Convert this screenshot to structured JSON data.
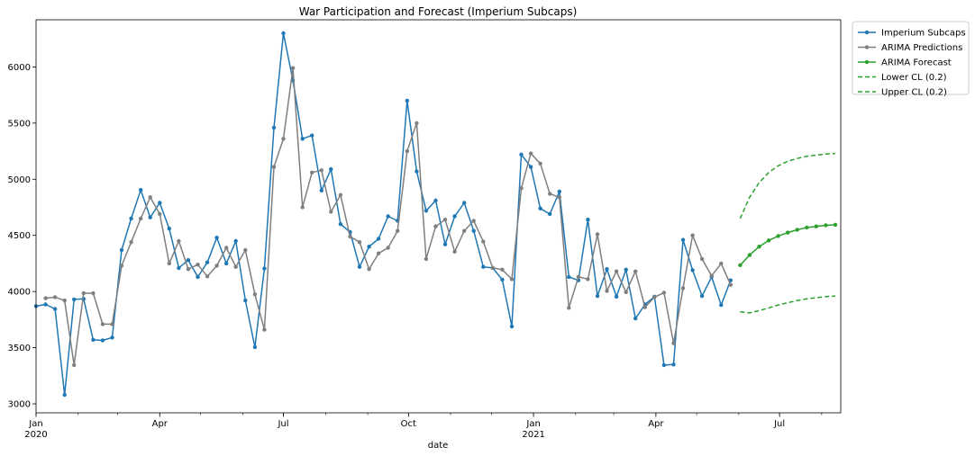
{
  "chart_data": {
    "type": "line",
    "title": "War Participation and Forecast (Imperium Subcaps)",
    "xlabel": "date",
    "ylabel": "",
    "x_axis": {
      "type": "date",
      "range": [
        "2020-01-01",
        "2021-08-15"
      ],
      "major_ticks": [
        {
          "date": "2020-01-01",
          "label": "Jan",
          "sublabel": "2020"
        },
        {
          "date": "2020-04-01",
          "label": "Apr",
          "sublabel": ""
        },
        {
          "date": "2020-07-01",
          "label": "Jul",
          "sublabel": ""
        },
        {
          "date": "2020-10-01",
          "label": "Oct",
          "sublabel": ""
        },
        {
          "date": "2021-01-01",
          "label": "Jan",
          "sublabel": "2021"
        },
        {
          "date": "2021-04-01",
          "label": "Apr",
          "sublabel": ""
        },
        {
          "date": "2021-07-01",
          "label": "Jul",
          "sublabel": ""
        }
      ]
    },
    "y_axis": {
      "range": [
        2920,
        6420
      ],
      "ticks": [
        3000,
        3500,
        4000,
        4500,
        5000,
        5500,
        6000
      ]
    },
    "grid": false,
    "legend": {
      "placement": "outside top-right"
    },
    "series": [
      {
        "name": "Imperium Subcaps",
        "color": "#1f77b4",
        "style": "solid",
        "marker": "dot",
        "points": [
          {
            "x": "2020-01-01",
            "y": 3870
          },
          {
            "x": "2020-01-08",
            "y": 3885
          },
          {
            "x": "2020-01-15",
            "y": 3845
          },
          {
            "x": "2020-01-22",
            "y": 3080
          },
          {
            "x": "2020-01-29",
            "y": 3930
          },
          {
            "x": "2020-02-05",
            "y": 3935
          },
          {
            "x": "2020-02-12",
            "y": 3570
          },
          {
            "x": "2020-02-19",
            "y": 3565
          },
          {
            "x": "2020-02-26",
            "y": 3590
          },
          {
            "x": "2020-03-04",
            "y": 4370
          },
          {
            "x": "2020-03-11",
            "y": 4650
          },
          {
            "x": "2020-03-18",
            "y": 4905
          },
          {
            "x": "2020-03-25",
            "y": 4660
          },
          {
            "x": "2020-04-01",
            "y": 4790
          },
          {
            "x": "2020-04-08",
            "y": 4560
          },
          {
            "x": "2020-04-15",
            "y": 4210
          },
          {
            "x": "2020-04-22",
            "y": 4280
          },
          {
            "x": "2020-04-29",
            "y": 4130
          },
          {
            "x": "2020-05-06",
            "y": 4260
          },
          {
            "x": "2020-05-13",
            "y": 4480
          },
          {
            "x": "2020-05-20",
            "y": 4250
          },
          {
            "x": "2020-05-27",
            "y": 4450
          },
          {
            "x": "2020-06-03",
            "y": 3920
          },
          {
            "x": "2020-06-10",
            "y": 3505
          },
          {
            "x": "2020-06-17",
            "y": 4205
          },
          {
            "x": "2020-06-24",
            "y": 5460
          },
          {
            "x": "2020-07-01",
            "y": 6300
          },
          {
            "x": "2020-07-08",
            "y": 5880
          },
          {
            "x": "2020-07-15",
            "y": 5360
          },
          {
            "x": "2020-07-22",
            "y": 5390
          },
          {
            "x": "2020-07-29",
            "y": 4900
          },
          {
            "x": "2020-08-05",
            "y": 5090
          },
          {
            "x": "2020-08-12",
            "y": 4600
          },
          {
            "x": "2020-08-19",
            "y": 4530
          },
          {
            "x": "2020-08-26",
            "y": 4220
          },
          {
            "x": "2020-09-02",
            "y": 4400
          },
          {
            "x": "2020-09-09",
            "y": 4470
          },
          {
            "x": "2020-09-16",
            "y": 4670
          },
          {
            "x": "2020-09-23",
            "y": 4630
          },
          {
            "x": "2020-09-30",
            "y": 5700
          },
          {
            "x": "2020-10-07",
            "y": 5070
          },
          {
            "x": "2020-10-14",
            "y": 4720
          },
          {
            "x": "2020-10-21",
            "y": 4810
          },
          {
            "x": "2020-10-28",
            "y": 4420
          },
          {
            "x": "2020-11-04",
            "y": 4670
          },
          {
            "x": "2020-11-11",
            "y": 4790
          },
          {
            "x": "2020-11-18",
            "y": 4540
          },
          {
            "x": "2020-11-25",
            "y": 4220
          },
          {
            "x": "2020-12-02",
            "y": 4210
          },
          {
            "x": "2020-12-09",
            "y": 4105
          },
          {
            "x": "2020-12-16",
            "y": 3690
          },
          {
            "x": "2020-12-23",
            "y": 5220
          },
          {
            "x": "2020-12-30",
            "y": 5110
          },
          {
            "x": "2021-01-06",
            "y": 4740
          },
          {
            "x": "2021-01-13",
            "y": 4690
          },
          {
            "x": "2021-01-20",
            "y": 4890
          },
          {
            "x": "2021-01-27",
            "y": 4130
          },
          {
            "x": "2021-02-03",
            "y": 4100
          },
          {
            "x": "2021-02-10",
            "y": 4640
          },
          {
            "x": "2021-02-17",
            "y": 3960
          },
          {
            "x": "2021-02-24",
            "y": 4200
          },
          {
            "x": "2021-03-03",
            "y": 3955
          },
          {
            "x": "2021-03-10",
            "y": 4195
          },
          {
            "x": "2021-03-17",
            "y": 3760
          },
          {
            "x": "2021-03-24",
            "y": 3885
          },
          {
            "x": "2021-03-31",
            "y": 3955
          },
          {
            "x": "2021-04-07",
            "y": 3345
          },
          {
            "x": "2021-04-14",
            "y": 3350
          },
          {
            "x": "2021-04-21",
            "y": 4460
          },
          {
            "x": "2021-04-28",
            "y": 4190
          },
          {
            "x": "2021-05-05",
            "y": 3960
          },
          {
            "x": "2021-05-12",
            "y": 4130
          },
          {
            "x": "2021-05-19",
            "y": 3880
          },
          {
            "x": "2021-05-26",
            "y": 4100
          }
        ]
      },
      {
        "name": "ARIMA Predictions",
        "color": "#7f7f7f",
        "style": "solid",
        "marker": "dot",
        "points": [
          {
            "x": "2020-01-08",
            "y": 3940
          },
          {
            "x": "2020-01-15",
            "y": 3950
          },
          {
            "x": "2020-01-22",
            "y": 3920
          },
          {
            "x": "2020-01-29",
            "y": 3345
          },
          {
            "x": "2020-02-05",
            "y": 3985
          },
          {
            "x": "2020-02-12",
            "y": 3985
          },
          {
            "x": "2020-02-19",
            "y": 3710
          },
          {
            "x": "2020-02-26",
            "y": 3710
          },
          {
            "x": "2020-03-04",
            "y": 4230
          },
          {
            "x": "2020-03-11",
            "y": 4440
          },
          {
            "x": "2020-03-18",
            "y": 4650
          },
          {
            "x": "2020-03-25",
            "y": 4840
          },
          {
            "x": "2020-04-01",
            "y": 4690
          },
          {
            "x": "2020-04-08",
            "y": 4250
          },
          {
            "x": "2020-04-15",
            "y": 4450
          },
          {
            "x": "2020-04-22",
            "y": 4200
          },
          {
            "x": "2020-04-29",
            "y": 4240
          },
          {
            "x": "2020-05-06",
            "y": 4135
          },
          {
            "x": "2020-05-13",
            "y": 4230
          },
          {
            "x": "2020-05-20",
            "y": 4390
          },
          {
            "x": "2020-05-27",
            "y": 4220
          },
          {
            "x": "2020-06-03",
            "y": 4370
          },
          {
            "x": "2020-06-10",
            "y": 3975
          },
          {
            "x": "2020-06-17",
            "y": 3660
          },
          {
            "x": "2020-06-24",
            "y": 5110
          },
          {
            "x": "2020-07-01",
            "y": 5360
          },
          {
            "x": "2020-07-08",
            "y": 5990
          },
          {
            "x": "2020-07-15",
            "y": 4750
          },
          {
            "x": "2020-07-22",
            "y": 5060
          },
          {
            "x": "2020-07-29",
            "y": 5080
          },
          {
            "x": "2020-08-05",
            "y": 4710
          },
          {
            "x": "2020-08-12",
            "y": 4860
          },
          {
            "x": "2020-08-19",
            "y": 4490
          },
          {
            "x": "2020-08-26",
            "y": 4440
          },
          {
            "x": "2020-09-02",
            "y": 4200
          },
          {
            "x": "2020-09-09",
            "y": 4340
          },
          {
            "x": "2020-09-16",
            "y": 4390
          },
          {
            "x": "2020-09-23",
            "y": 4540
          },
          {
            "x": "2020-09-30",
            "y": 5250
          },
          {
            "x": "2020-10-07",
            "y": 5500
          },
          {
            "x": "2020-10-14",
            "y": 4290
          },
          {
            "x": "2020-10-21",
            "y": 4580
          },
          {
            "x": "2020-10-28",
            "y": 4640
          },
          {
            "x": "2020-11-04",
            "y": 4355
          },
          {
            "x": "2020-11-11",
            "y": 4540
          },
          {
            "x": "2020-11-18",
            "y": 4630
          },
          {
            "x": "2020-11-25",
            "y": 4445
          },
          {
            "x": "2020-12-02",
            "y": 4210
          },
          {
            "x": "2020-12-09",
            "y": 4195
          },
          {
            "x": "2020-12-16",
            "y": 4110
          },
          {
            "x": "2020-12-23",
            "y": 4920
          },
          {
            "x": "2020-12-30",
            "y": 5230
          },
          {
            "x": "2021-01-06",
            "y": 5140
          },
          {
            "x": "2021-01-13",
            "y": 4870
          },
          {
            "x": "2021-01-20",
            "y": 4840
          },
          {
            "x": "2021-01-27",
            "y": 3855
          },
          {
            "x": "2021-02-03",
            "y": 4130
          },
          {
            "x": "2021-02-10",
            "y": 4110
          },
          {
            "x": "2021-02-17",
            "y": 4510
          },
          {
            "x": "2021-02-24",
            "y": 4005
          },
          {
            "x": "2021-03-03",
            "y": 4180
          },
          {
            "x": "2021-03-10",
            "y": 3995
          },
          {
            "x": "2021-03-17",
            "y": 4180
          },
          {
            "x": "2021-03-24",
            "y": 3860
          },
          {
            "x": "2021-03-31",
            "y": 3950
          },
          {
            "x": "2021-04-07",
            "y": 3990
          },
          {
            "x": "2021-04-14",
            "y": 3540
          },
          {
            "x": "2021-04-21",
            "y": 4030
          },
          {
            "x": "2021-04-28",
            "y": 4500
          },
          {
            "x": "2021-05-05",
            "y": 4290
          },
          {
            "x": "2021-05-12",
            "y": 4140
          },
          {
            "x": "2021-05-19",
            "y": 4250
          },
          {
            "x": "2021-05-26",
            "y": 4060
          }
        ]
      },
      {
        "name": "ARIMA Forecast",
        "color": "#2ca02c",
        "style": "solid",
        "marker": "dot",
        "points": [
          {
            "x": "2021-06-02",
            "y": 4235
          },
          {
            "x": "2021-06-09",
            "y": 4325
          },
          {
            "x": "2021-06-16",
            "y": 4400
          },
          {
            "x": "2021-06-23",
            "y": 4455
          },
          {
            "x": "2021-06-30",
            "y": 4495
          },
          {
            "x": "2021-07-07",
            "y": 4525
          },
          {
            "x": "2021-07-14",
            "y": 4550
          },
          {
            "x": "2021-07-21",
            "y": 4570
          },
          {
            "x": "2021-07-28",
            "y": 4580
          },
          {
            "x": "2021-08-04",
            "y": 4590
          },
          {
            "x": "2021-08-11",
            "y": 4595
          }
        ]
      },
      {
        "name": "Lower CL (0.2)",
        "color": "#2ca02c",
        "style": "dashed",
        "marker": "none",
        "points": [
          {
            "x": "2021-06-02",
            "y": 3820
          },
          {
            "x": "2021-06-09",
            "y": 3810
          },
          {
            "x": "2021-06-16",
            "y": 3830
          },
          {
            "x": "2021-06-23",
            "y": 3855
          },
          {
            "x": "2021-06-30",
            "y": 3880
          },
          {
            "x": "2021-07-07",
            "y": 3900
          },
          {
            "x": "2021-07-14",
            "y": 3920
          },
          {
            "x": "2021-07-21",
            "y": 3935
          },
          {
            "x": "2021-07-28",
            "y": 3945
          },
          {
            "x": "2021-08-04",
            "y": 3955
          },
          {
            "x": "2021-08-11",
            "y": 3960
          }
        ]
      },
      {
        "name": "Upper CL (0.2)",
        "color": "#2ca02c",
        "style": "dashed",
        "marker": "none",
        "points": [
          {
            "x": "2021-06-02",
            "y": 4650
          },
          {
            "x": "2021-06-09",
            "y": 4840
          },
          {
            "x": "2021-06-16",
            "y": 4970
          },
          {
            "x": "2021-06-23",
            "y": 5060
          },
          {
            "x": "2021-06-30",
            "y": 5120
          },
          {
            "x": "2021-07-07",
            "y": 5160
          },
          {
            "x": "2021-07-14",
            "y": 5185
          },
          {
            "x": "2021-07-21",
            "y": 5205
          },
          {
            "x": "2021-07-28",
            "y": 5215
          },
          {
            "x": "2021-08-04",
            "y": 5225
          },
          {
            "x": "2021-08-11",
            "y": 5230
          }
        ]
      }
    ]
  }
}
